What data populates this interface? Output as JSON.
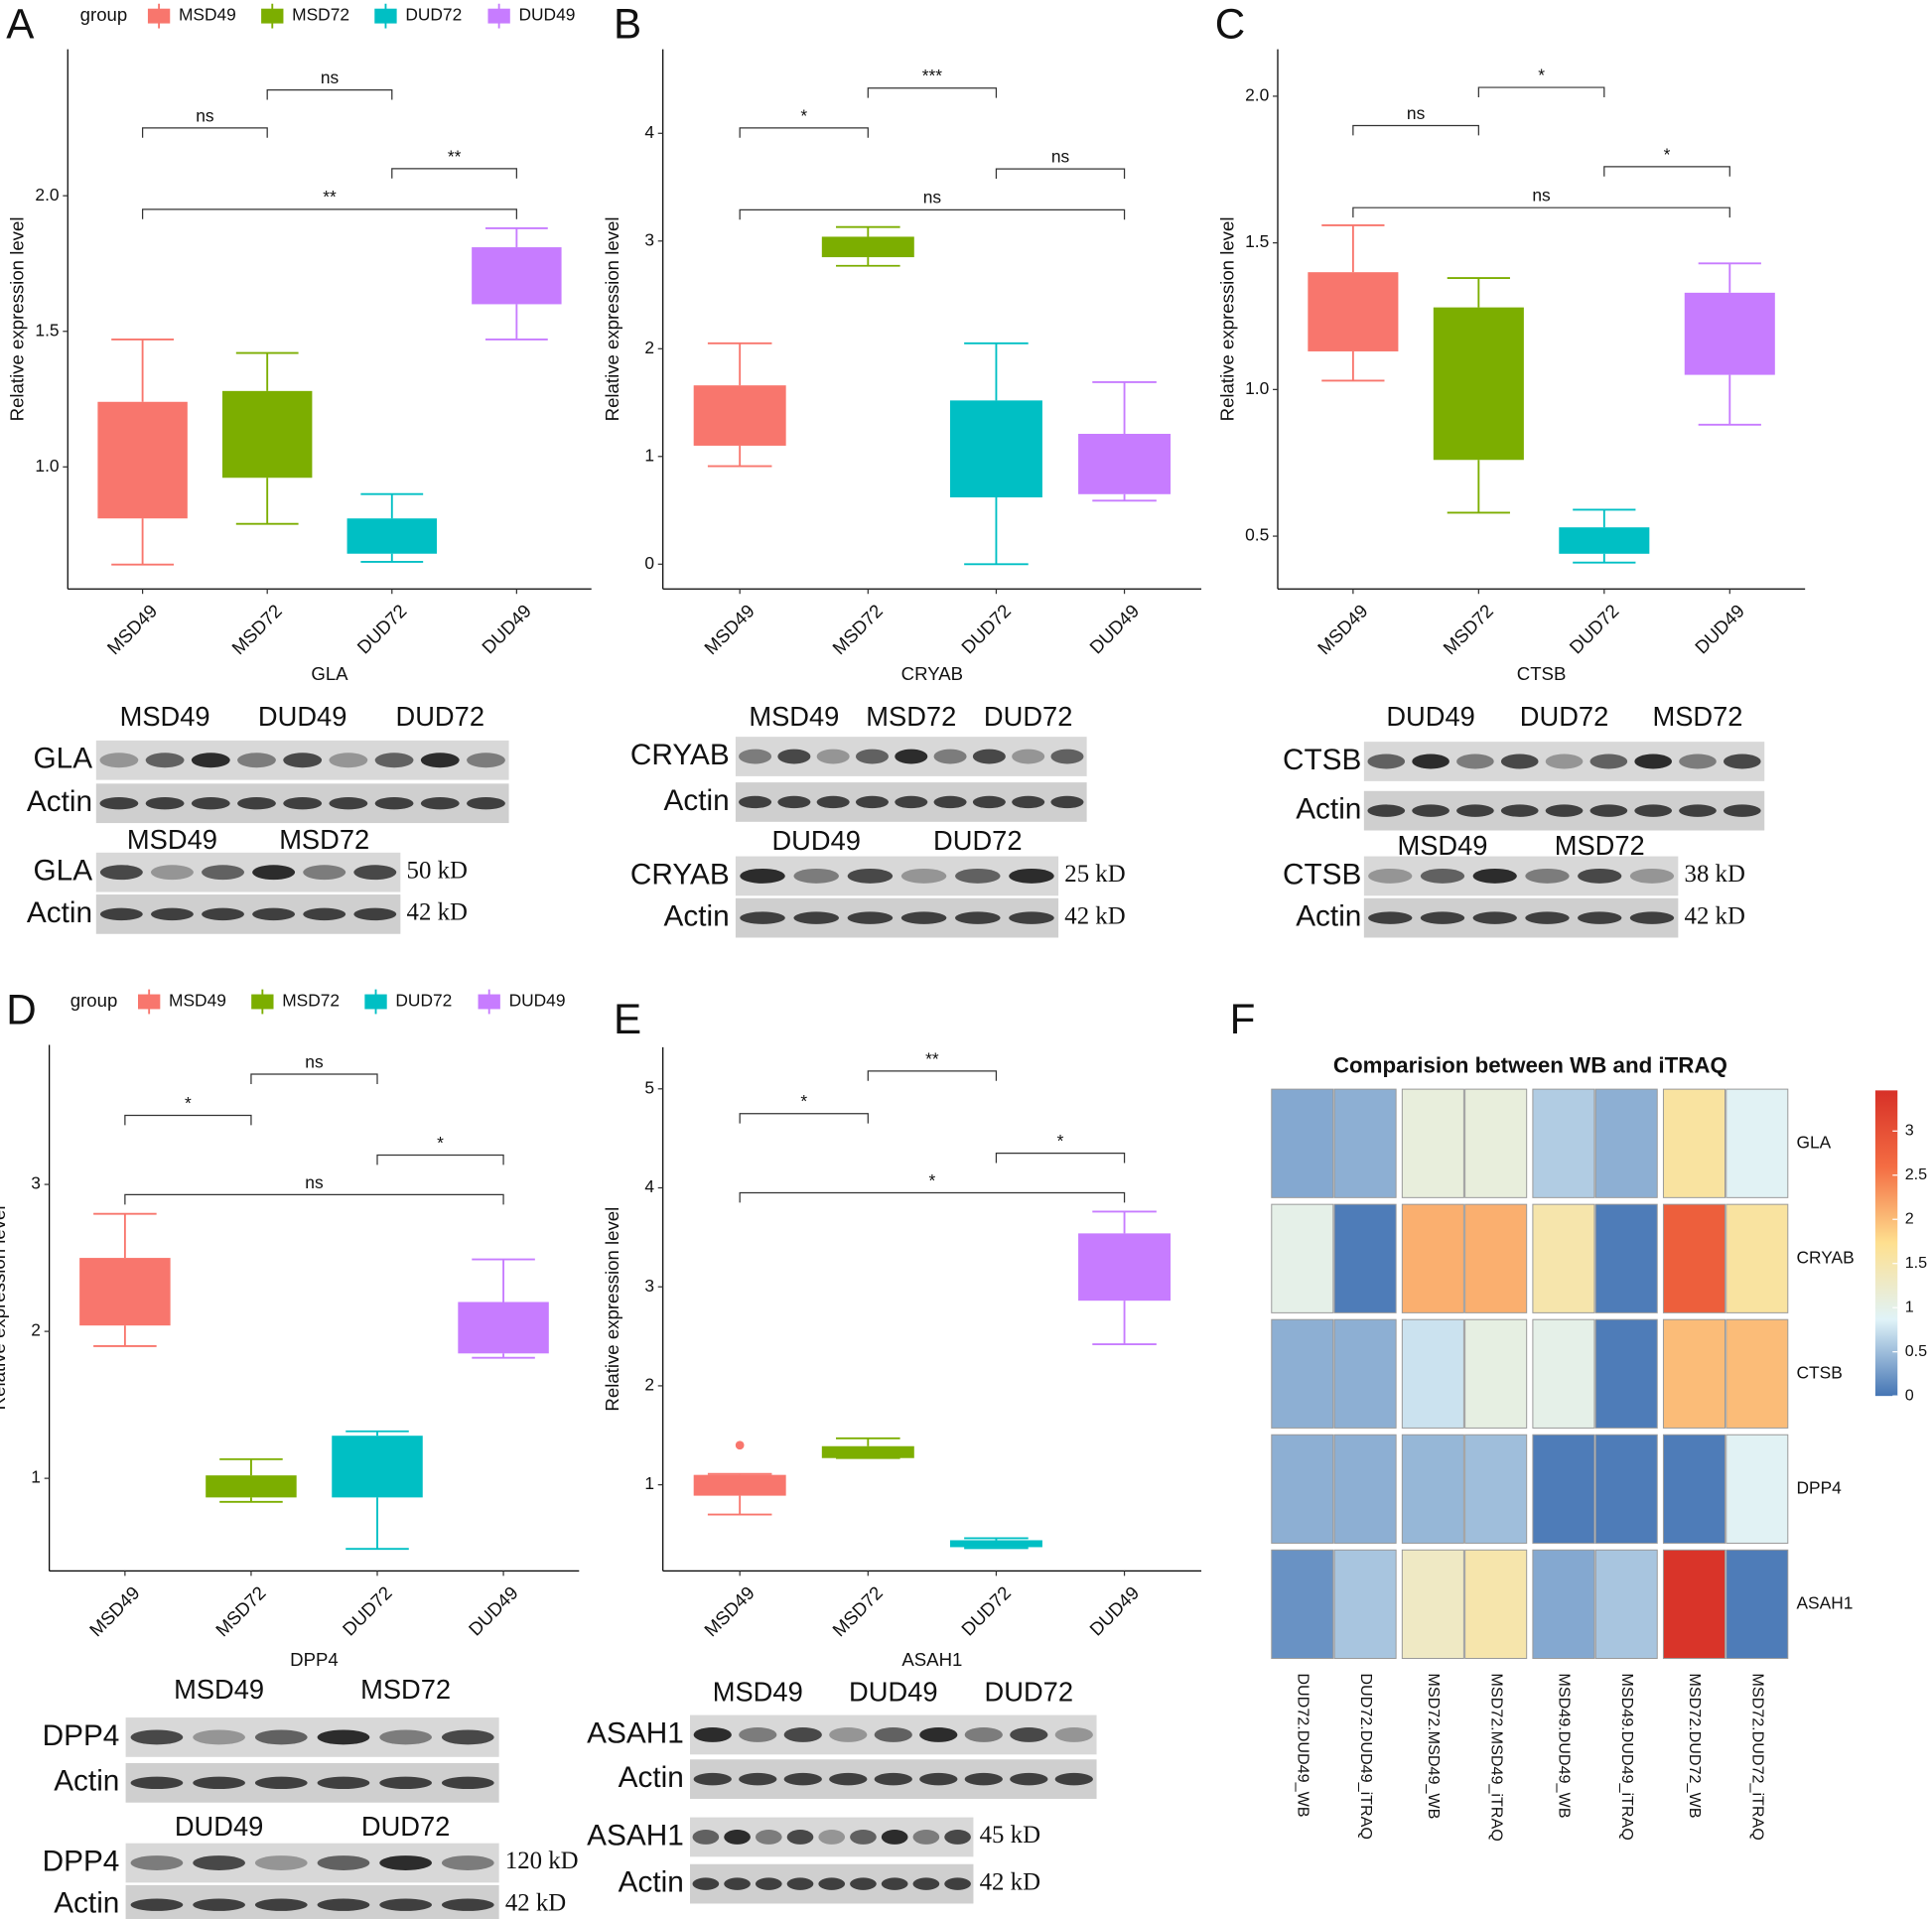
{
  "chart_data": [
    {
      "type": "box",
      "panel": "A",
      "xlabel": "GLA",
      "ylabel": "Relative expression level",
      "legend_title": "group",
      "categories": [
        "MSD49",
        "MSD72",
        "DUD72",
        "DUD49"
      ],
      "colors": [
        "#f8766d",
        "#7cae00",
        "#00bfc4",
        "#c77cff"
      ],
      "ylim": [
        0.55,
        2.54
      ],
      "yticks": [
        {
          "value": 1,
          "label": "1.0"
        },
        1.5,
        {
          "value": 2,
          "label": "2.0"
        }
      ],
      "boxes": [
        {
          "min": 0.64,
          "q1": 0.81,
          "q3": 1.24,
          "max": 1.47
        },
        {
          "min": 0.79,
          "q1": 0.96,
          "q3": 1.28,
          "max": 1.42
        },
        {
          "min": 0.65,
          "q1": 0.68,
          "q3": 0.81,
          "max": 0.9
        },
        {
          "min": 1.47,
          "q1": 1.6,
          "q3": 1.81,
          "max": 1.88
        }
      ],
      "comparisons": [
        {
          "between": [
            "MSD49",
            "MSD72"
          ],
          "label": "ns",
          "y": 2.25
        },
        {
          "between": [
            "MSD72",
            "DUD72"
          ],
          "label": "ns",
          "y": 2.39
        },
        {
          "between": [
            "DUD72",
            "DUD49"
          ],
          "label": "**",
          "y": 2.1
        },
        {
          "between": [
            "MSD49",
            "DUD49"
          ],
          "label": "**",
          "y": 1.95
        }
      ],
      "blots": [
        {
          "groups": [
            "MSD49",
            "DUD49",
            "DUD72"
          ],
          "rows": [
            "GLA",
            "Actin"
          ]
        },
        {
          "groups": [
            "MSD49",
            "MSD72"
          ],
          "rows": [
            "GLA",
            "Actin"
          ],
          "sizes": [
            "50 kD",
            "42 kD"
          ]
        }
      ]
    },
    {
      "type": "box",
      "panel": "B",
      "xlabel": "CRYAB",
      "ylabel": "Relative expression level",
      "categories": [
        "MSD49",
        "MSD72",
        "DUD72",
        "DUD49"
      ],
      "colors": [
        "#f8766d",
        "#7cae00",
        "#00bfc4",
        "#c77cff"
      ],
      "ylim": [
        -0.23,
        4.78
      ],
      "yticks": [
        0,
        1,
        2,
        3,
        4
      ],
      "boxes": [
        {
          "min": 0.91,
          "q1": 1.1,
          "q3": 1.66,
          "max": 2.05
        },
        {
          "min": 2.77,
          "q1": 2.85,
          "q3": 3.04,
          "max": 3.13
        },
        {
          "min": 0,
          "q1": 0.62,
          "q3": 1.52,
          "max": 2.05
        },
        {
          "min": 0.59,
          "q1": 0.65,
          "q3": 1.21,
          "max": 1.69
        }
      ],
      "comparisons": [
        {
          "between": [
            "MSD49",
            "MSD72"
          ],
          "label": "*",
          "y": 4.05
        },
        {
          "between": [
            "MSD72",
            "DUD72"
          ],
          "label": "***",
          "y": 4.42
        },
        {
          "between": [
            "DUD72",
            "DUD49"
          ],
          "label": "ns",
          "y": 3.67
        },
        {
          "between": [
            "MSD49",
            "DUD49"
          ],
          "label": "ns",
          "y": 3.29
        }
      ],
      "blots": [
        {
          "groups": [
            "MSD49",
            "MSD72",
            "DUD72"
          ],
          "rows": [
            "CRYAB",
            "Actin"
          ]
        },
        {
          "groups": [
            "DUD49",
            "DUD72"
          ],
          "rows": [
            "CRYAB",
            "Actin"
          ],
          "sizes": [
            "25 kD",
            "42 kD"
          ]
        }
      ]
    },
    {
      "type": "box",
      "panel": "C",
      "xlabel": "CTSB",
      "ylabel": "Relative expression level",
      "categories": [
        "MSD49",
        "MSD72",
        "DUD72",
        "DUD49"
      ],
      "colors": [
        "#f8766d",
        "#7cae00",
        "#00bfc4",
        "#c77cff"
      ],
      "ylim": [
        0.32,
        2.16
      ],
      "yticks": [
        0.5,
        {
          "value": 1,
          "label": "1.0"
        },
        1.5,
        {
          "value": 2,
          "label": "2.0"
        }
      ],
      "boxes": [
        {
          "min": 1.03,
          "q1": 1.13,
          "q3": 1.4,
          "max": 1.56
        },
        {
          "min": 0.58,
          "q1": 0.76,
          "q3": 1.28,
          "max": 1.38
        },
        {
          "min": 0.41,
          "q1": 0.44,
          "q3": 0.53,
          "max": 0.59
        },
        {
          "min": 0.88,
          "q1": 1.05,
          "q3": 1.33,
          "max": 1.43
        }
      ],
      "comparisons": [
        {
          "between": [
            "MSD49",
            "MSD72"
          ],
          "label": "ns",
          "y": 1.9
        },
        {
          "between": [
            "MSD72",
            "DUD72"
          ],
          "label": "*",
          "y": 2.03
        },
        {
          "between": [
            "DUD72",
            "DUD49"
          ],
          "label": "*",
          "y": 1.76
        },
        {
          "between": [
            "MSD49",
            "DUD49"
          ],
          "label": "ns",
          "y": 1.62
        }
      ],
      "blots": [
        {
          "groups": [
            "DUD49",
            "DUD72",
            "MSD72"
          ],
          "rows": [
            "CTSB",
            "Actin"
          ]
        },
        {
          "groups": [
            "MSD49",
            "MSD72"
          ],
          "rows": [
            "CTSB",
            "Actin"
          ],
          "sizes": [
            "38 kD",
            "42 kD"
          ]
        }
      ]
    },
    {
      "type": "box",
      "panel": "D",
      "xlabel": "DPP4",
      "ylabel": "Relative expression level",
      "legend_title": "group",
      "categories": [
        "MSD49",
        "MSD72",
        "DUD72",
        "DUD49"
      ],
      "colors": [
        "#f8766d",
        "#7cae00",
        "#00bfc4",
        "#c77cff"
      ],
      "ylim": [
        0.37,
        3.95
      ],
      "yticks": [
        1,
        2,
        3
      ],
      "boxes": [
        {
          "min": 1.9,
          "q1": 2.04,
          "q3": 2.5,
          "max": 2.8
        },
        {
          "min": 0.84,
          "q1": 0.87,
          "q3": 1.02,
          "max": 1.13
        },
        {
          "min": 0.52,
          "q1": 0.87,
          "q3": 1.29,
          "max": 1.32
        },
        {
          "min": 1.82,
          "q1": 1.85,
          "q3": 2.2,
          "max": 2.49
        }
      ],
      "comparisons": [
        {
          "between": [
            "MSD49",
            "MSD72"
          ],
          "label": "*",
          "y": 3.47
        },
        {
          "between": [
            "MSD72",
            "DUD72"
          ],
          "label": "ns",
          "y": 3.75
        },
        {
          "between": [
            "DUD72",
            "DUD49"
          ],
          "label": "*",
          "y": 3.2
        },
        {
          "between": [
            "MSD49",
            "DUD49"
          ],
          "label": "ns",
          "y": 2.93
        }
      ],
      "blots": [
        {
          "groups": [
            "MSD49",
            "MSD72"
          ],
          "rows": [
            "DPP4",
            "Actin"
          ]
        },
        {
          "groups": [
            "DUD49",
            "DUD72"
          ],
          "rows": [
            "DPP4",
            "Actin"
          ],
          "sizes": [
            "120 kD",
            "42 kD"
          ]
        }
      ]
    },
    {
      "type": "box",
      "panel": "E",
      "xlabel": "ASAH1",
      "ylabel": "Relative expression level",
      "categories": [
        "MSD49",
        "MSD72",
        "DUD72",
        "DUD49"
      ],
      "colors": [
        "#f8766d",
        "#7cae00",
        "#00bfc4",
        "#c77cff"
      ],
      "ylim": [
        0.13,
        5.42
      ],
      "yticks": [
        1,
        2,
        3,
        4,
        5
      ],
      "boxes": [
        {
          "min": 0.7,
          "q1": 0.89,
          "q3": 1.1,
          "max": 1.11
        },
        {
          "min": 1.27,
          "q1": 1.27,
          "q3": 1.39,
          "max": 1.47
        },
        {
          "min": 0.36,
          "q1": 0.37,
          "q3": 0.44,
          "max": 0.46
        },
        {
          "min": 2.42,
          "q1": 2.86,
          "q3": 3.54,
          "max": 3.76
        }
      ],
      "outliers": [
        {
          "category": "MSD49",
          "value": 1.4
        }
      ],
      "comparisons": [
        {
          "between": [
            "MSD49",
            "MSD72"
          ],
          "label": "*",
          "y": 4.75
        },
        {
          "between": [
            "MSD72",
            "DUD72"
          ],
          "label": "**",
          "y": 5.18
        },
        {
          "between": [
            "DUD72",
            "DUD49"
          ],
          "label": "*",
          "y": 4.35
        },
        {
          "between": [
            "MSD49",
            "DUD49"
          ],
          "label": "*",
          "y": 3.95
        }
      ],
      "blots": [
        {
          "groups": [
            "MSD49",
            "DUD49",
            "DUD72"
          ],
          "rows": [
            "ASAH1",
            "Actin"
          ]
        },
        {
          "rows": [
            "ASAH1",
            "Actin"
          ],
          "sizes": [
            "45 kD",
            "42 kD"
          ]
        }
      ]
    },
    {
      "type": "heatmap",
      "panel": "F",
      "title": "Comparision between WB and iTRAQ",
      "rows": [
        "GLA",
        "CRYAB",
        "CTSB",
        "DPP4",
        "ASAH1"
      ],
      "columns": [
        "DUD72.DUD49_WB",
        "DUD72.DUD49_iTRAQ",
        "MSD72.MSD49_WB",
        "MSD72.MSD49_iTRAQ",
        "MSD49.DUD49_WB",
        "MSD49.DUD49_iTRAQ",
        "MSD72.DUD72_WB",
        "MSD72.DUD72_iTRAQ"
      ],
      "values": [
        [
          0.35,
          0.4,
          1.1,
          1.1,
          0.6,
          0.4,
          1.6,
          0.9
        ],
        [
          1.0,
          0.05,
          2.1,
          2.1,
          1.5,
          0.05,
          2.8,
          1.6
        ],
        [
          0.4,
          0.4,
          0.75,
          1.05,
          1.0,
          0.05,
          2.0,
          2.0
        ],
        [
          0.4,
          0.4,
          0.45,
          0.5,
          0.05,
          0.05,
          0.05,
          0.9
        ],
        [
          0.2,
          0.55,
          1.3,
          1.5,
          0.35,
          0.55,
          3.4,
          0.05
        ]
      ],
      "colors": [
        "#4575b4",
        "#e0f3f8",
        "#fee090",
        "#f46d43",
        "#d73027"
      ],
      "clim": [
        0,
        3.46
      ],
      "cticks": [
        0,
        0.5,
        1,
        1.5,
        2,
        2.5,
        3
      ]
    }
  ]
}
